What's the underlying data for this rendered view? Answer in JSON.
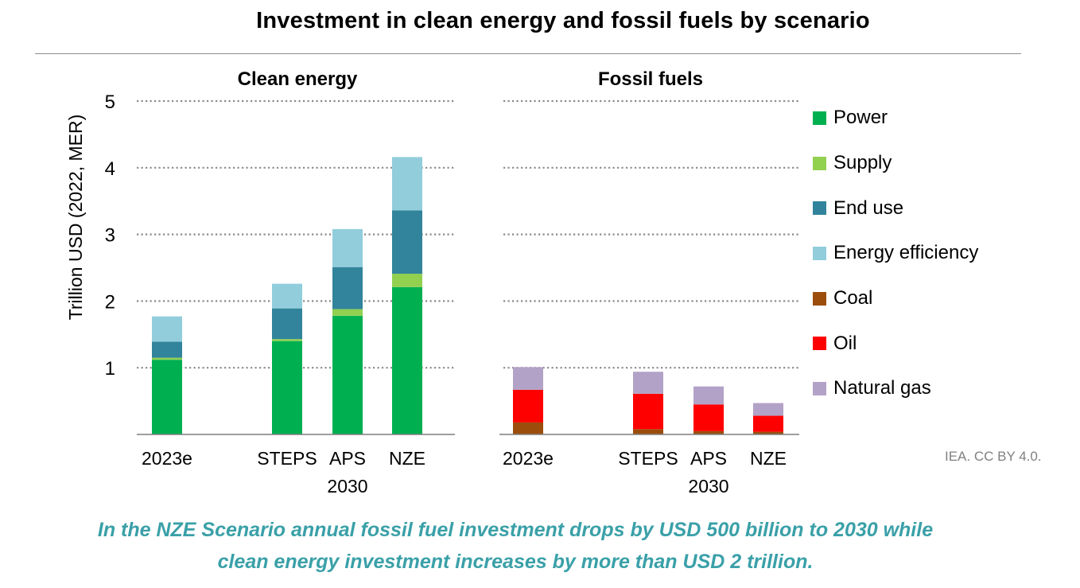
{
  "title": "Investment in clean energy and fossil fuels by scenario",
  "credit": "IEA. CC BY 4.0.",
  "caption": {
    "line1": "In the NZE Scenario annual fossil fuel investment drops by USD 500 billion to 2030 while",
    "line2": "clean energy investment increases by more than USD 2 trillion."
  },
  "legend": [
    {
      "name": "Power",
      "color": "#00b050"
    },
    {
      "name": "Supply",
      "color": "#92d050"
    },
    {
      "name": "End use",
      "color": "#31849b"
    },
    {
      "name": "Energy efficiency",
      "color": "#92cddc"
    },
    {
      "name": "Coal",
      "color": "#9c4d0c"
    },
    {
      "name": "Oil",
      "color": "#ff0000"
    },
    {
      "name": "Natural gas",
      "color": "#b3a2c7"
    }
  ],
  "chart_data": [
    {
      "type": "bar",
      "stacked": true,
      "title": "Clean energy",
      "ylabel": "Trillion USD (2022, MER)",
      "ylim": [
        0,
        5
      ],
      "yticks": [
        1,
        2,
        3,
        4,
        5
      ],
      "grid": true,
      "categories": [
        "2023e",
        "STEPS",
        "APS",
        "NZE"
      ],
      "group_label": "2030",
      "series": [
        {
          "name": "Power",
          "color": "#00b050",
          "values": [
            1.12,
            1.4,
            1.78,
            2.21
          ]
        },
        {
          "name": "Supply",
          "color": "#92d050",
          "values": [
            0.03,
            0.03,
            0.1,
            0.2
          ]
        },
        {
          "name": "End use",
          "color": "#31849b",
          "values": [
            0.24,
            0.46,
            0.63,
            0.95
          ]
        },
        {
          "name": "Energy efficiency",
          "color": "#92cddc",
          "values": [
            0.38,
            0.37,
            0.57,
            0.8
          ]
        }
      ]
    },
    {
      "type": "bar",
      "stacked": true,
      "title": "Fossil fuels",
      "ylim": [
        0,
        5
      ],
      "grid": true,
      "categories": [
        "2023e",
        "STEPS",
        "APS",
        "NZE"
      ],
      "group_label": "2030",
      "series": [
        {
          "name": "Coal",
          "color": "#9c4d0c",
          "values": [
            0.18,
            0.08,
            0.05,
            0.04
          ]
        },
        {
          "name": "Oil",
          "color": "#ff0000",
          "values": [
            0.49,
            0.53,
            0.4,
            0.24
          ]
        },
        {
          "name": "Natural gas",
          "color": "#b3a2c7",
          "values": [
            0.34,
            0.33,
            0.27,
            0.19
          ]
        }
      ]
    }
  ]
}
